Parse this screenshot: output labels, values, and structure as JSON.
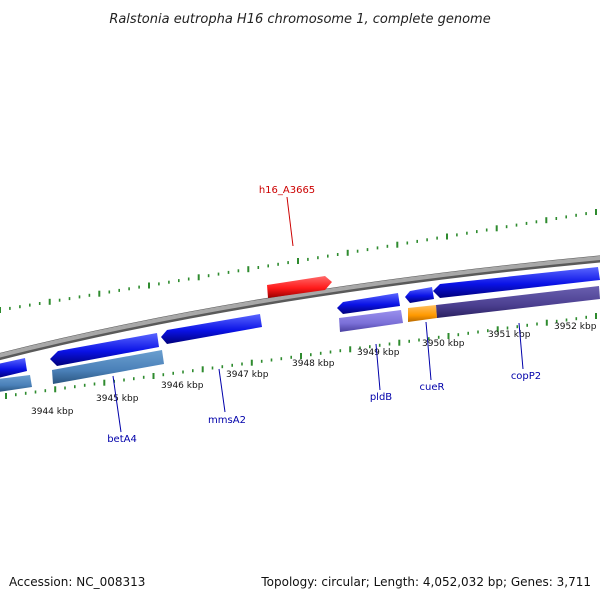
{
  "title": "Ralstonia eutropha H16 chromosome 1, complete genome",
  "accession_text": "Accession: NC_008313",
  "summary_text": "Topology: circular; Length: 4,052,032 bp; Genes: 3,711",
  "kbp_labels": [
    "3944 kbp",
    "3945 kbp",
    "3946 kbp",
    "3947 kbp",
    "3948 kbp",
    "3949 kbp",
    "3950 kbp",
    "3951 kbp",
    "3952 kbp"
  ],
  "genes": [
    {
      "name": "h16_A3665",
      "color": "#cc0000"
    },
    {
      "name": "betA4",
      "color": "#0000aa"
    },
    {
      "name": "mmsA2",
      "color": "#0000aa"
    },
    {
      "name": "pldB",
      "color": "#0000aa"
    },
    {
      "name": "cueR",
      "color": "#0000aa"
    },
    {
      "name": "copP2",
      "color": "#0000aa"
    }
  ],
  "colors": {
    "backbone": "#8c8c8c",
    "tick": "#2e8b2e",
    "cds": "#0a12e6",
    "rrna": "#ff1a1a",
    "feature_steel": "#4a80b8",
    "feature_lavender": "#7b70d8",
    "feature_orange": "#ff9900",
    "feature_dark": "#4b3f90"
  }
}
